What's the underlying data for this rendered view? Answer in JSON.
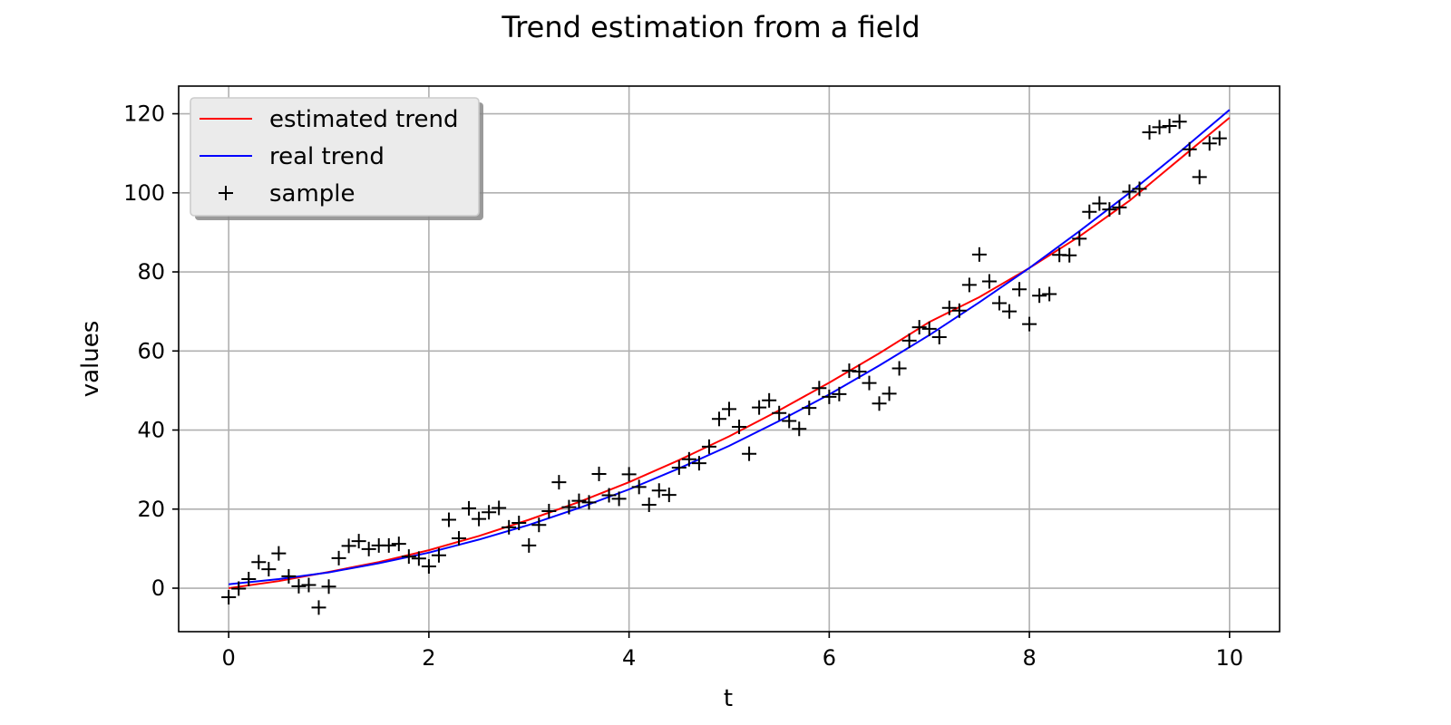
{
  "chart_data": {
    "type": "line",
    "title": "Trend estimation from a field",
    "xlabel": "t",
    "ylabel": "values",
    "xlim": [
      -0.5,
      10.5
    ],
    "ylim": [
      -11,
      127
    ],
    "x_ticks": [
      0,
      2,
      4,
      6,
      8,
      10
    ],
    "y_ticks": [
      0,
      20,
      40,
      60,
      80,
      100,
      120
    ],
    "grid": true,
    "legend_position": "top-left",
    "series": [
      {
        "name": "estimated trend",
        "kind": "line",
        "color": "#ff0000",
        "x": [
          0,
          0.5,
          1,
          1.5,
          2,
          2.5,
          3,
          3.5,
          4,
          4.5,
          5,
          5.5,
          6,
          6.5,
          7,
          7.5,
          8,
          8.5,
          9,
          9.5,
          10
        ],
        "y": [
          0,
          1.8,
          4.1,
          6.6,
          9.6,
          13.2,
          17.3,
          21.8,
          26.8,
          32.4,
          38.4,
          45.0,
          52.0,
          59.4,
          67.3,
          73.6,
          81.0,
          89.0,
          98.0,
          108.5,
          119.0
        ]
      },
      {
        "name": "real trend",
        "kind": "line",
        "color": "#0000ff",
        "x": [
          0,
          0.5,
          1,
          1.5,
          2,
          2.5,
          3,
          3.5,
          4,
          4.5,
          5,
          5.5,
          6,
          6.5,
          7,
          7.5,
          8,
          8.5,
          9,
          9.5,
          10
        ],
        "y": [
          1,
          2.3,
          4.0,
          6.3,
          9.0,
          12.3,
          16.0,
          20.3,
          25.0,
          30.3,
          36.0,
          42.3,
          49.0,
          56.3,
          64.0,
          72.3,
          81.0,
          90.3,
          100.0,
          110.3,
          121.0
        ]
      },
      {
        "name": "sample",
        "kind": "marker",
        "marker": "+",
        "color": "#000000",
        "x": [
          0,
          0.1,
          0.2,
          0.3,
          0.4,
          0.5,
          0.6,
          0.7,
          0.8,
          0.9,
          1.0,
          1.1,
          1.2,
          1.3,
          1.4,
          1.5,
          1.6,
          1.7,
          1.8,
          1.9,
          2.0,
          2.1,
          2.2,
          2.3,
          2.4,
          2.5,
          2.6,
          2.7,
          2.8,
          2.9,
          3.0,
          3.1,
          3.2,
          3.3,
          3.4,
          3.5,
          3.6,
          3.7,
          3.8,
          3.9,
          4.0,
          4.1,
          4.2,
          4.3,
          4.4,
          4.5,
          4.6,
          4.7,
          4.8,
          4.9,
          5.0,
          5.1,
          5.2,
          5.3,
          5.4,
          5.5,
          5.6,
          5.7,
          5.8,
          5.9,
          6.0,
          6.1,
          6.2,
          6.3,
          6.4,
          6.5,
          6.6,
          6.7,
          6.8,
          6.9,
          7.0,
          7.1,
          7.2,
          7.3,
          7.4,
          7.5,
          7.6,
          7.7,
          7.8,
          7.9,
          8.0,
          8.1,
          8.2,
          8.3,
          8.4,
          8.5,
          8.6,
          8.7,
          8.8,
          8.9,
          9.0,
          9.1,
          9.2,
          9.3,
          9.4,
          9.5,
          9.6,
          9.7,
          9.8,
          9.9
        ],
        "y": [
          -2.3,
          -0.1,
          2.3,
          6.6,
          4.8,
          8.8,
          3.0,
          0.5,
          0.8,
          -4.9,
          0.4,
          7.6,
          10.7,
          11.9,
          9.9,
          10.8,
          10.8,
          11.2,
          8.0,
          7.5,
          5.5,
          8.3,
          17.3,
          12.6,
          20.2,
          17.5,
          19.2,
          20.3,
          15.4,
          16.5,
          10.8,
          16.0,
          19.5,
          26.8,
          20.5,
          22.1,
          21.7,
          28.9,
          23.5,
          22.6,
          28.8,
          25.6,
          21.1,
          24.7,
          23.6,
          30.5,
          32.6,
          31.6,
          35.8,
          42.8,
          45.3,
          40.8,
          34.0,
          45.7,
          47.5,
          44.3,
          42.3,
          40.3,
          45.6,
          50.6,
          48.4,
          49.1,
          55.0,
          54.8,
          51.9,
          46.7,
          49.2,
          55.6,
          62.6,
          66.0,
          65.6,
          63.5,
          70.9,
          70.2,
          76.7,
          84.4,
          77.6,
          72.1,
          70.0,
          75.6,
          66.8,
          74.0,
          74.4,
          84.3,
          84.2,
          88.4,
          95.2,
          97.3,
          95.8,
          96.3,
          100.3,
          101.0,
          115.3,
          116.6,
          116.9,
          118.0,
          111.0,
          104.0,
          112.5,
          113.8
        ]
      }
    ]
  }
}
